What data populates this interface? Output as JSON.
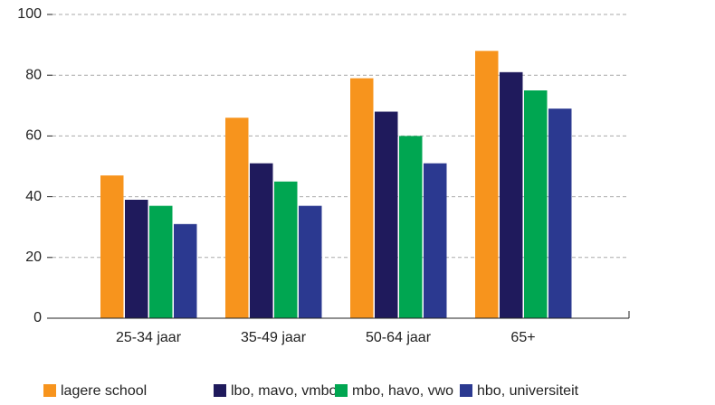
{
  "chart_data": {
    "type": "bar",
    "categories": [
      "25-34 jaar",
      "35-49 jaar",
      "50-64 jaar",
      "65+"
    ],
    "series": [
      {
        "name": "lagere school",
        "color": "#f7941d",
        "values": [
          47,
          66,
          79,
          88
        ]
      },
      {
        "name": "lbo, mavo, vmbo",
        "color": "#1f1a5c",
        "values": [
          39,
          51,
          68,
          81
        ]
      },
      {
        "name": "mbo, havo, vwo",
        "color": "#00a651",
        "values": [
          37,
          45,
          60,
          75
        ]
      },
      {
        "name": "hbo, universiteit",
        "color": "#2b3990",
        "values": [
          31,
          37,
          51,
          69
        ]
      }
    ],
    "ylim": [
      0,
      100
    ],
    "yticks": [
      0,
      20,
      40,
      60,
      80,
      100
    ],
    "grid": true,
    "legend": "bottom"
  }
}
